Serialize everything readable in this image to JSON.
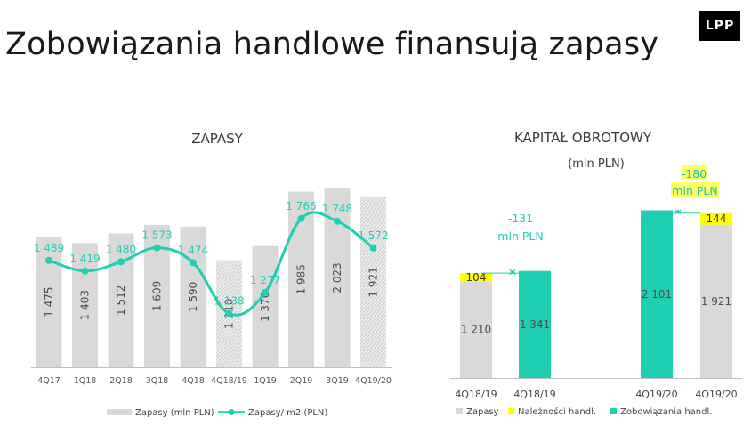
{
  "page": {
    "title": "Zobowiązania handlowe finansują zapasy",
    "logo": "LPP"
  },
  "colors": {
    "bar_gray": "#d9d9d9",
    "bar_hatched": "#e6e6e6",
    "accent_teal": "#1fcfb2",
    "highlight_yellow": "#ffff00",
    "text_dark": "#3a3a3a"
  },
  "chart_data": [
    {
      "type": "bar",
      "title": "ZAPASY",
      "categories": [
        "4Q17",
        "1Q18",
        "2Q18",
        "3Q18",
        "4Q18",
        "4Q18/19",
        "1Q19",
        "2Q19",
        "3Q19",
        "4Q19/20"
      ],
      "series": [
        {
          "name": "Zapasy (mln PLN)",
          "kind": "bar",
          "values": [
            1475,
            1403,
            1512,
            1609,
            1590,
            1210,
            1370,
            1985,
            2023,
            1921
          ],
          "labels": [
            "1 475",
            "1 403",
            "1 512",
            "1 609",
            "1 590",
            "1 210",
            "1 370",
            "1 985",
            "2 023",
            "1 921"
          ],
          "hatched": [
            false,
            false,
            false,
            false,
            false,
            true,
            false,
            false,
            false,
            true
          ]
        },
        {
          "name": "Zapasy/ m2 (PLN)",
          "kind": "line",
          "values": [
            1489,
            1419,
            1480,
            1573,
            1474,
            1138,
            1277,
            1766,
            1748,
            1572
          ],
          "labels": [
            "1 489",
            "1 419",
            "1 480",
            "1 573",
            "1 474",
            "1 138",
            "1 277",
            "1 766",
            "1 748",
            "1 572"
          ]
        }
      ],
      "legend_position": "bottom",
      "grid": false
    },
    {
      "type": "bar",
      "title": "KAPITAŁ OBROTOWY",
      "subtitle": "(mln PLN)",
      "categories": [
        "4Q18/19",
        "4Q18/19",
        "4Q19/20",
        "4Q19/20"
      ],
      "stacks": [
        {
          "zapasy": 1210,
          "naleznosci": 104,
          "labels": {
            "zapasy": "1 210",
            "naleznosci": "104"
          }
        },
        {
          "zobowiazania": 1341,
          "labels": {
            "zobowiazania": "1 341"
          }
        },
        {
          "zobowiazania": 2101,
          "labels": {
            "zobowiazania": "2 101"
          }
        },
        {
          "zapasy": 1921,
          "naleznosci": 144,
          "labels": {
            "zapasy": "1 921",
            "naleznosci": "144"
          }
        }
      ],
      "series_names": [
        "Zapasy",
        "Należności handl.",
        "Zobowiązania handl."
      ],
      "annotations": [
        {
          "value": -131,
          "line1": "-131",
          "line2": "mln PLN"
        },
        {
          "value": -180,
          "line1": "-180",
          "line2": "mln PLN",
          "highlighted": true
        }
      ],
      "legend_position": "bottom",
      "grid": false
    }
  ]
}
